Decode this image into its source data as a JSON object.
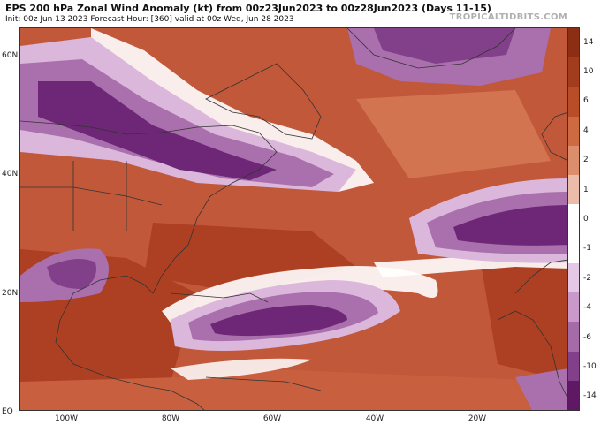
{
  "header": {
    "title": "EPS 200 hPa Zonal Wind Anomaly (kt) from 00z23Jun2023 to 00z28Jun2023 (Days 11-15)",
    "subtitle": "Init: 00z Jun 13 2023   Forecast Hour: [360]   valid at 00z Wed, Jun 28 2023",
    "brand": "TROPICALTIDBITS.COM"
  },
  "axes": {
    "lat_labels": [
      "60N",
      "40N",
      "20N",
      "EQ"
    ],
    "lon_labels": [
      "100W",
      "80W",
      "60W",
      "40W",
      "20W"
    ]
  },
  "colorbar": {
    "labels": [
      "14",
      "10",
      "6",
      "4",
      "2",
      "1",
      "0",
      "-1",
      "-2",
      "-4",
      "-6",
      "-10",
      "-14"
    ],
    "colors": [
      "#8b2e14",
      "#a23c1c",
      "#b94d28",
      "#cd6a42",
      "#dc8d6c",
      "#ebbcaa",
      "#ffffff",
      "#ffffff",
      "#e5c8e5",
      "#c99ac9",
      "#a56aa8",
      "#83408a",
      "#5e1864"
    ]
  },
  "map_colors": {
    "ocean_base": "#c2583a",
    "pos_light": "#e3a186",
    "pos_mid": "#d27450",
    "pos_strong": "#ad4022",
    "neg_light": "#dcb7dc",
    "neg_mid": "#aa70ad",
    "neg_strong": "#6d2776",
    "neutral": "#ffffff",
    "border_line": "#333333"
  }
}
